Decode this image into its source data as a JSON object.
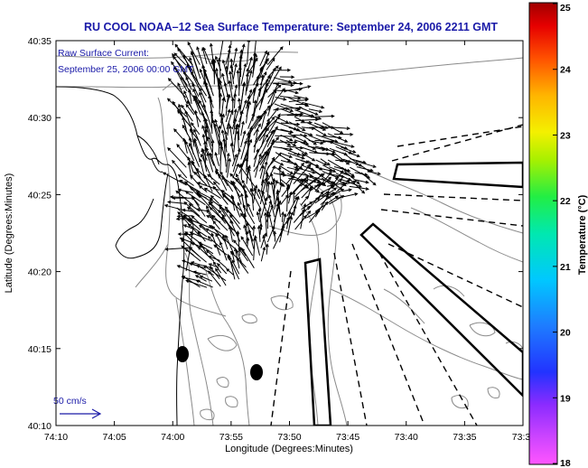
{
  "title": "RU COOL  NOAA–12  Sea Surface Temperature:  September 24, 2006 2211 GMT",
  "current_note": {
    "line1": "Raw Surface Current:",
    "line2": "September 25, 2006 00:00 GMT"
  },
  "scale_label": "50 cm/s",
  "axes": {
    "xlabel": "Longitude (Degrees:Minutes)",
    "ylabel": "Latitude (Degrees:Minutes)",
    "x_ticks": [
      "74:10",
      "74:05",
      "74:00",
      "73:55",
      "73:50",
      "73:45",
      "73:40",
      "73:35",
      "73:3"
    ],
    "y_ticks": [
      "40:35",
      "40:30",
      "40:25",
      "40:20",
      "40:15",
      "40:10"
    ]
  },
  "colorbar": {
    "label": "Temperature (°C)",
    "ticks": [
      "25",
      "24",
      "23",
      "22",
      "21",
      "20",
      "19",
      "18"
    ],
    "range": [
      18,
      25
    ]
  },
  "colors": {
    "title": "#1a1aa8",
    "coast": "#000000",
    "bathymetry": "#8a8a8a",
    "arrows": "#000000"
  }
}
